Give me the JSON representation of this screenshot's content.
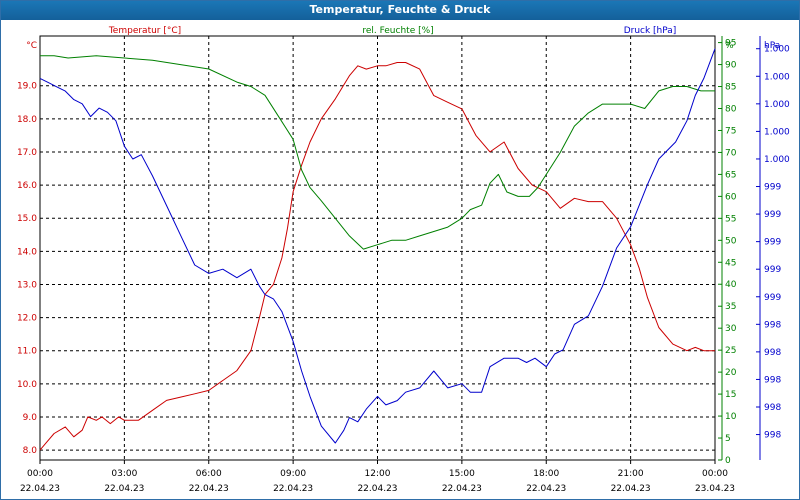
{
  "window": {
    "title": "Temperatur, Feuchte & Druck"
  },
  "chart_data": {
    "type": "line",
    "title": "Temperatur, Feuchte & Druck",
    "x_tick_labels": [
      {
        "time": "00:00",
        "date": "22.04.23"
      },
      {
        "time": "03:00",
        "date": "22.04.23"
      },
      {
        "time": "06:00",
        "date": "22.04.23"
      },
      {
        "time": "09:00",
        "date": "22.04.23"
      },
      {
        "time": "12:00",
        "date": "22.04.23"
      },
      {
        "time": "15:00",
        "date": "22.04.23"
      },
      {
        "time": "18:00",
        "date": "22.04.23"
      },
      {
        "time": "21:00",
        "date": "22.04.23"
      },
      {
        "time": "00:00",
        "date": "23.04.23"
      }
    ],
    "xlim_hours": [
      0,
      24
    ],
    "axes": {
      "temperature": {
        "unit": "°C",
        "ylim": [
          7.7,
          20.5
        ],
        "ticks": [
          "8.0",
          "9.0",
          "10.0",
          "11.0",
          "12.0",
          "13.0",
          "14.0",
          "15.0",
          "16.0",
          "17.0",
          "18.0",
          "19.0"
        ],
        "tick_values": [
          8,
          9,
          10,
          11,
          12,
          13,
          14,
          15,
          16,
          17,
          18,
          19
        ]
      },
      "humidity": {
        "unit": "%",
        "ylim": [
          0,
          96.5
        ],
        "ticks": [
          "0",
          "5",
          "10",
          "15",
          "20",
          "25",
          "30",
          "35",
          "40",
          "45",
          "50",
          "55",
          "60",
          "65",
          "70",
          "75",
          "80",
          "85",
          "90",
          "95"
        ],
        "tick_values": [
          0,
          5,
          10,
          15,
          20,
          25,
          30,
          35,
          40,
          45,
          50,
          55,
          60,
          65,
          70,
          75,
          80,
          85,
          90,
          95
        ]
      },
      "pressure": {
        "unit": "hPa",
        "ylim": [
          0,
          100
        ],
        "ticks": [
          "998",
          "998",
          "998",
          "998",
          "998",
          "999",
          "999",
          "999",
          "999",
          "999",
          "1.000",
          "1.000",
          "1.000",
          "1.000",
          "1.000"
        ],
        "tick_positions": [
          6.0,
          12.5,
          19.0,
          25.5,
          32.0,
          38.5,
          45.0,
          51.5,
          58.0,
          64.5,
          71.0,
          77.5,
          84.0,
          90.5,
          97.0
        ]
      }
    },
    "grid": true,
    "legend": [
      {
        "label": "Temperatur [°C]",
        "color": "#cc0000"
      },
      {
        "label": "rel. Feuchte [%]",
        "color": "#008000"
      },
      {
        "label": "Druck [hPa]",
        "color": "#0000cc"
      }
    ],
    "series": [
      {
        "name": "Temperatur [°C]",
        "color": "#cc0000",
        "x": [
          0,
          0.2,
          0.5,
          0.9,
          1.2,
          1.5,
          1.7,
          2,
          2.2,
          2.5,
          2.8,
          3,
          3.5,
          4,
          4.5,
          5,
          5.5,
          6,
          6.5,
          7,
          7.5,
          7.8,
          8,
          8.3,
          8.6,
          8.8,
          9,
          9.3,
          9.6,
          10,
          10.5,
          11,
          11.3,
          11.6,
          12,
          12.3,
          12.7,
          13,
          13.5,
          14,
          14.5,
          15,
          15.5,
          16,
          16.5,
          17,
          17.5,
          18,
          18.5,
          19,
          19.5,
          20,
          20.5,
          21,
          21.3,
          21.6,
          22,
          22.5,
          23,
          23.3,
          23.6,
          23.8,
          24
        ],
        "values": [
          8.0,
          8.2,
          8.5,
          8.7,
          8.4,
          8.6,
          9.0,
          8.9,
          9.0,
          8.8,
          9.0,
          8.9,
          8.9,
          9.2,
          9.5,
          9.6,
          9.7,
          9.8,
          10.1,
          10.4,
          11.0,
          12.0,
          12.7,
          13.0,
          13.8,
          14.7,
          15.8,
          16.6,
          17.3,
          18.0,
          18.6,
          19.3,
          19.6,
          19.5,
          19.6,
          19.6,
          19.7,
          19.7,
          19.5,
          18.7,
          18.5,
          18.3,
          17.5,
          17.0,
          17.3,
          16.5,
          16.0,
          15.8,
          15.3,
          15.6,
          15.5,
          15.5,
          15.0,
          14.2,
          13.5,
          12.6,
          11.7,
          11.2,
          11.0,
          11.1,
          11.0,
          11.0,
          11.0
        ]
      },
      {
        "name": "rel. Feuchte [%]",
        "color": "#008000",
        "x": [
          0,
          0.5,
          1,
          2,
          3,
          4,
          5,
          6,
          7,
          7.5,
          8,
          8.5,
          9,
          9.3,
          9.6,
          10,
          10.5,
          11,
          11.5,
          12,
          12.5,
          13,
          13.5,
          14,
          14.5,
          15,
          15.3,
          15.7,
          16,
          16.3,
          16.6,
          17,
          17.4,
          17.7,
          18,
          18.5,
          19,
          19.5,
          20,
          20.5,
          21,
          21.5,
          22,
          22.5,
          23,
          23.5,
          24
        ],
        "values": [
          92,
          92,
          91.5,
          92,
          91.5,
          91,
          90,
          89,
          86,
          85,
          83,
          78,
          73,
          66,
          62,
          59,
          55,
          51,
          48,
          49,
          50,
          50,
          51,
          52,
          53,
          55,
          57,
          58,
          63,
          65,
          61,
          60,
          60,
          62,
          65,
          70,
          76,
          79,
          81,
          81,
          81,
          80,
          84,
          85,
          85,
          84,
          84
        ]
      },
      {
        "name": "Druck [hPa]",
        "color": "#0000cc",
        "x": [
          0,
          0.3,
          0.6,
          0.9,
          1.2,
          1.5,
          1.8,
          2.1,
          2.4,
          2.7,
          3,
          3.3,
          3.6,
          4,
          4.5,
          5,
          5.5,
          6,
          6.5,
          7,
          7.5,
          7.8,
          8,
          8.3,
          8.6,
          9,
          9.3,
          9.6,
          10,
          10.5,
          10.8,
          11,
          11.3,
          11.6,
          12,
          12.3,
          12.7,
          13,
          13.5,
          14,
          14.5,
          15,
          15.3,
          15.7,
          16,
          16.5,
          17,
          17.3,
          17.6,
          18,
          18.3,
          18.6,
          19,
          19.5,
          20,
          20.5,
          21,
          21.3,
          21.6,
          22,
          22.3,
          22.6,
          23,
          23.3,
          23.6,
          24
        ],
        "values": [
          90,
          89,
          88,
          87,
          85,
          84,
          81,
          83,
          82,
          80,
          74,
          71,
          72,
          67,
          60,
          53,
          46,
          44,
          45,
          43,
          45,
          41,
          39,
          38,
          35,
          28,
          21,
          15,
          8,
          4,
          7,
          10,
          9,
          12,
          15,
          13,
          14,
          16,
          17,
          21,
          17,
          18,
          16,
          16,
          22,
          24,
          24,
          23,
          24,
          22,
          25,
          26,
          32,
          34,
          41,
          50,
          55,
          60,
          65,
          71,
          73,
          75,
          80,
          86,
          90,
          97
        ]
      }
    ]
  }
}
